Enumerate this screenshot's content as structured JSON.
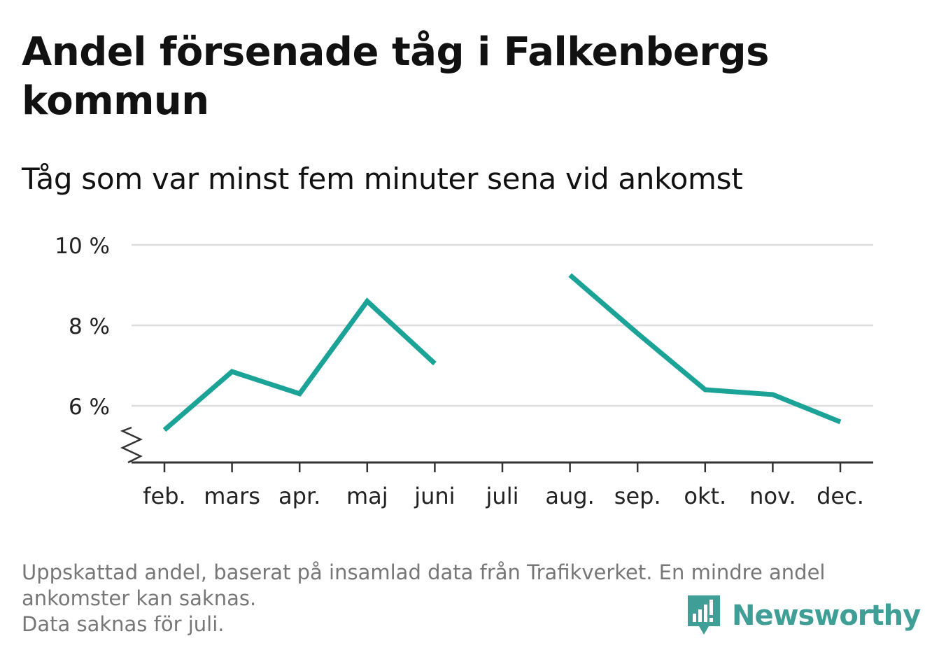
{
  "title": "Andel försenade tåg i Falkenbergs kommun",
  "subtitle": "Tåg som var minst fem minuter sena vid ankomst",
  "footnote": {
    "line1": "Uppskattad andel, baserat på insamlad data från Trafikverket. En mindre andel",
    "line2": "ankomster kan saknas.",
    "line3": "Data saknas för juli."
  },
  "brand": {
    "name": "Newsworthy",
    "icon": "newsworthy-logo-icon"
  },
  "colors": {
    "line": "#1aa396",
    "grid": "#dddddd",
    "axis": "#333333",
    "text": "#111111",
    "tick_label": "#222222",
    "footnote": "#777777",
    "brand": "#3f9f96"
  },
  "chart_data": {
    "type": "line",
    "title": "Andel försenade tåg i Falkenbergs kommun",
    "subtitle": "Tåg som var minst fem minuter sena vid ankomst",
    "categories": [
      "feb.",
      "mars",
      "apr.",
      "maj",
      "juni",
      "juli",
      "aug.",
      "sep.",
      "okt.",
      "nov.",
      "dec."
    ],
    "series": [
      {
        "values": [
          5.4,
          6.85,
          6.3,
          8.6,
          7.05,
          null,
          9.25,
          7.8,
          6.4,
          6.28,
          5.6
        ]
      }
    ],
    "yticks": [
      6,
      8,
      10
    ],
    "ytick_labels": [
      "6 %",
      "8 %",
      "10 %"
    ],
    "ylim": [
      4.6,
      10
    ],
    "y_axis_break": true,
    "grid": true,
    "legend": "none",
    "xlabel": "",
    "ylabel": ""
  }
}
